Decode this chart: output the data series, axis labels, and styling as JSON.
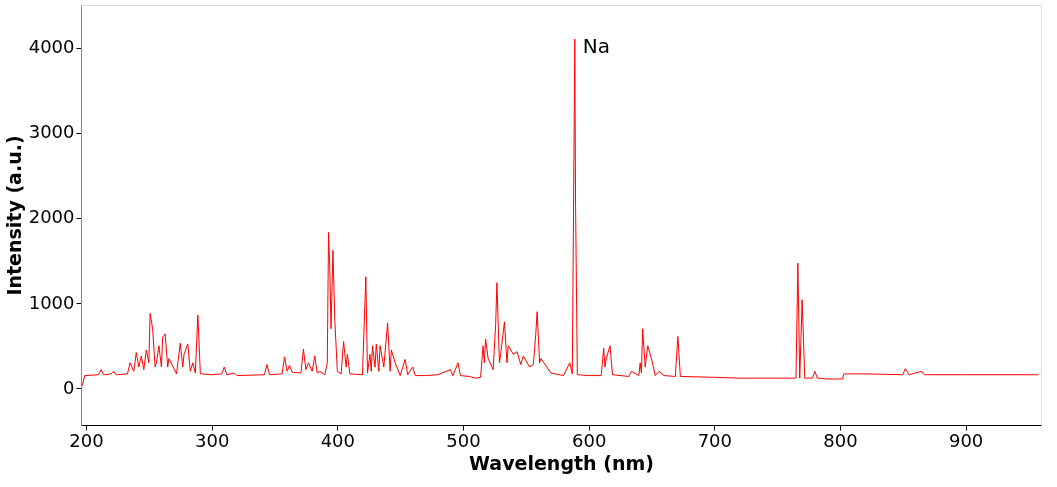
{
  "chart_data": {
    "type": "line",
    "xlabel": "Wavelength (nm)",
    "ylabel": "Intensity (a.u.)",
    "xlim": [
      196,
      960
    ],
    "ylim": [
      -430,
      4500
    ],
    "xticks": [
      200,
      300,
      400,
      500,
      600,
      700,
      800,
      900
    ],
    "yticks": [
      0,
      1000,
      2000,
      3000,
      4000
    ],
    "grid": false,
    "marker": "none",
    "line_style": "solid",
    "annotations": [
      {
        "text": "Na",
        "x": 589,
        "y": 4100
      }
    ],
    "series": [
      {
        "color": "#ff0000",
        "x": [
          197,
          199,
          210,
          212,
          214,
          220,
          222,
          224,
          233,
          235,
          238,
          240,
          242,
          244,
          246,
          248,
          250,
          251,
          253,
          255,
          256,
          258,
          260,
          261,
          263,
          265,
          266,
          272,
          275,
          277,
          278,
          281,
          283,
          285,
          287,
          289,
          291,
          300,
          308,
          310,
          312,
          318,
          320,
          342,
          344,
          346,
          356,
          358,
          360,
          362,
          364,
          371,
          373,
          375,
          377,
          380,
          382,
          384,
          386,
          390,
          392,
          393,
          394,
          395,
          396.5,
          398,
          400,
          403,
          405,
          407,
          408,
          410,
          420,
          422.7,
          424,
          426,
          427,
          428,
          430,
          431,
          433,
          434,
          437,
          440,
          442,
          443,
          446,
          450,
          454,
          456,
          460,
          462,
          470,
          480,
          490,
          492,
          496,
          498,
          505,
          510,
          514,
          516,
          517,
          518,
          520,
          524,
          526,
          527,
          529,
          530,
          533,
          535,
          536,
          540,
          543,
          546,
          548,
          553,
          556,
          558,
          559,
          561,
          562,
          570,
          580,
          585,
          587,
          588.99,
          589.6,
          591,
          600,
          610,
          612,
          613,
          614,
          617,
          619,
          632,
          634,
          640,
          641,
          642,
          643,
          645,
          647,
          650,
          653,
          656,
          660,
          669,
          671,
          673,
          700,
          720,
          760,
          765,
          766.5,
          768,
          769.9,
          772,
          778,
          780,
          782,
          790,
          800,
          802,
          803,
          820,
          850,
          852,
          855,
          865,
          867,
          900,
          958
        ],
        "values": [
          30,
          150,
          160,
          220,
          160,
          170,
          200,
          160,
          170,
          300,
          200,
          420,
          250,
          380,
          220,
          450,
          300,
          880,
          700,
          250,
          300,
          500,
          250,
          600,
          640,
          250,
          350,
          170,
          530,
          250,
          400,
          520,
          200,
          300,
          180,
          860,
          170,
          160,
          170,
          250,
          160,
          180,
          150,
          160,
          280,
          160,
          170,
          370,
          200,
          270,
          190,
          180,
          460,
          220,
          300,
          200,
          380,
          180,
          200,
          160,
          300,
          1830,
          1400,
          700,
          1620,
          800,
          200,
          170,
          550,
          250,
          400,
          170,
          160,
          1310,
          180,
          400,
          200,
          500,
          250,
          520,
          200,
          500,
          250,
          770,
          200,
          450,
          300,
          150,
          340,
          160,
          250,
          150,
          150,
          160,
          220,
          150,
          300,
          150,
          140,
          120,
          130,
          500,
          300,
          580,
          350,
          220,
          750,
          1240,
          300,
          400,
          780,
          300,
          500,
          400,
          430,
          280,
          380,
          250,
          280,
          650,
          900,
          300,
          350,
          180,
          150,
          300,
          170,
          4100,
          2150,
          160,
          150,
          150,
          470,
          250,
          350,
          500,
          160,
          140,
          200,
          150,
          300,
          180,
          700,
          250,
          500,
          350,
          150,
          200,
          150,
          140,
          610,
          140,
          130,
          120,
          120,
          120,
          1470,
          120,
          1040,
          120,
          120,
          200,
          120,
          110,
          110,
          110,
          170,
          170,
          160,
          230,
          160,
          200,
          160,
          160,
          160
        ]
      }
    ]
  }
}
